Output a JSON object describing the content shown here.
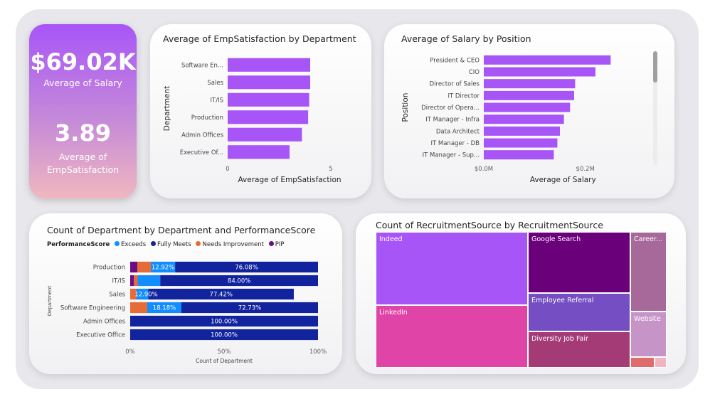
{
  "kpi": {
    "salary_value": "$69.02K",
    "salary_label": "Average of Salary",
    "satisfaction_value": "3.89",
    "satisfaction_label": "Average of EmpSatisfaction"
  },
  "chart_data": [
    {
      "type": "bar",
      "orientation": "horizontal",
      "title": "Average of EmpSatisfaction by Department",
      "xlabel": "Average of EmpSatisfaction",
      "ylabel": "Department",
      "categories": [
        "Software En...",
        "Sales",
        "IT/IS",
        "Production",
        "Admin Offices",
        "Executive Of..."
      ],
      "values": [
        4.0,
        4.0,
        3.95,
        3.9,
        3.6,
        3.0
      ],
      "xlim": [
        0,
        5
      ],
      "xticks": [
        "0",
        "5"
      ],
      "color": "#a855f7",
      "grid": false
    },
    {
      "type": "bar",
      "orientation": "horizontal",
      "title": "Average of Salary by Position",
      "xlabel": "Average of Salary",
      "ylabel": "Position",
      "categories": [
        "President & CEO",
        "CIO",
        "Director of Sales",
        "IT Director",
        "Director of Opera...",
        "IT Manager - Infra",
        "Data Architect",
        "IT Manager - DB",
        "IT Manager - Sup..."
      ],
      "values": [
        250000,
        220000,
        180000,
        178000,
        170000,
        158000,
        150000,
        145000,
        138000
      ],
      "xlim": [
        0,
        300000
      ],
      "xticks": [
        "$0.0M",
        "$0.2M"
      ],
      "color": "#a855f7",
      "grid": false
    },
    {
      "type": "bar",
      "orientation": "horizontal",
      "stacked": "100%",
      "title": "Count of Department by Department and PerformanceScore",
      "xlabel": "Count of Department",
      "ylabel": "Department",
      "legend_title": "PerformanceScore",
      "legend_placement": "top-left",
      "categories": [
        "Production",
        "IT/IS",
        "Sales",
        "Software Engineering",
        "Admin Offices",
        "Executive Office"
      ],
      "series": [
        {
          "name": "PIP",
          "color": "#6b0d84",
          "values": [
            3.8,
            2.0,
            0,
            0,
            0,
            0
          ],
          "labels": [
            "",
            "",
            "",
            "",
            "",
            ""
          ]
        },
        {
          "name": "Needs Improvement",
          "color": "#e66c37",
          "values": [
            7.2,
            2.0,
            3.23,
            9.09,
            0,
            0
          ],
          "labels": [
            "",
            "",
            "",
            "",
            "",
            ""
          ]
        },
        {
          "name": "Exceeds",
          "color": "#118dff",
          "values": [
            12.92,
            12.0,
            6.45,
            18.18,
            0,
            0
          ],
          "labels": [
            "12.92%",
            "",
            "",
            "18.18%",
            "",
            ""
          ]
        },
        {
          "name": "Fully Meets",
          "color": "#12239e",
          "values": [
            76.08,
            84.0,
            77.42,
            72.73,
            100,
            100
          ],
          "labels": [
            "76.08%",
            "84.00%",
            "77.42%",
            "72.73%",
            "100.00%",
            "100.00%"
          ]
        }
      ],
      "extra_label": {
        "category": "Sales",
        "text": "12.90%"
      },
      "xlim": [
        0,
        100
      ],
      "xticks": [
        "0%",
        "50%",
        "100%"
      ]
    },
    {
      "type": "treemap",
      "title": "Count of RecruitmentSource by RecruitmentSource",
      "items": [
        {
          "name": "Indeed",
          "color": "#a855f7"
        },
        {
          "name": "LinkedIn",
          "color": "#e044a7"
        },
        {
          "name": "Google Search",
          "color": "#6b007b"
        },
        {
          "name": "Employee Referral",
          "color": "#744ec2"
        },
        {
          "name": "Diversity Job Fair",
          "color": "#a43b76"
        },
        {
          "name": "Career...",
          "color": "#a66999"
        },
        {
          "name": "Website",
          "color": "#c794c8"
        },
        {
          "name": "",
          "color": "#e06b6b"
        },
        {
          "name": "",
          "color": "#f0b5c0"
        }
      ]
    }
  ]
}
